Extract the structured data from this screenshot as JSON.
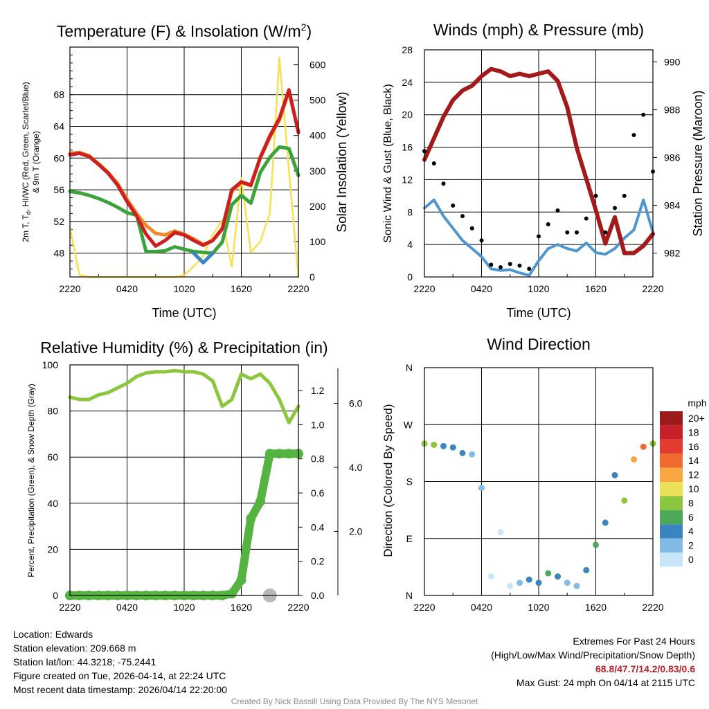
{
  "panels": {
    "temperature": {
      "title": "Temperature (F) & Insolation (W/m",
      "title_sup": "2",
      "title_close": ")",
      "xlabel": "Time (UTC)",
      "ylabel_left_line1": "2m T, T",
      "ylabel_left_sub": "d",
      "ylabel_left_rest": ", HI/WC (Red, Green, Scarlet/Blue)",
      "ylabel_left_line2": "& 9m T (Orange)",
      "ylabel_right": "Solar Insolation (Yellow)"
    },
    "winds": {
      "title": "Winds (mph) & Pressure (mb)",
      "xlabel": "Time (UTC)",
      "ylabel_left": "Sonic Wind & Gust (Blue, Black)",
      "ylabel_right": "Station Pressure (Maroon)"
    },
    "humidity": {
      "title": "Relative Humidity (%) & Precipitation (in)",
      "ylabel_left": "Percent, Precipitation (Green), & Snow Depth (Gray)"
    },
    "direction": {
      "title": "Wind Direction",
      "ylabel_left": "Direction (Colored By Speed)",
      "legend_title": "mph"
    }
  },
  "footer": {
    "location": "Location: Edwards",
    "elevation": "Station elevation: 209.668 m",
    "latlon": "Station lat/lon: 44.3218; -75.2441",
    "created": "Figure created on Tue, 2026-04-14, at 22:24 UTC",
    "recent": "Most recent data timestamp: 2026/04/14 22:20:00",
    "extremes_title": "Extremes For Past 24 Hours",
    "extremes_legend": "(High/Low/Max Wind/Precipitation/Snow Depth)",
    "extremes_values": "68.8/47.7/14.2/0.83/0.6",
    "max_gust": "Max Gust: 24 mph On 04/14 at 2115 UTC",
    "credit": "Created By Nick Bassill Using Data Provided By The NYS Mesonet"
  },
  "colors": {
    "temp": "#cc1f1f",
    "temp9m": "#f08a28",
    "dewpoint": "#3aa43a",
    "heat_index": "#d62020",
    "wind_chill": "#3a84c8",
    "solar": "#f7e14f",
    "wind": "#4f96d0",
    "gust": "#000000",
    "pressure": "#a41919",
    "rh": "#8cc63c",
    "precip": "#55b340",
    "snow": "#b8b8b8"
  },
  "chart_data": [
    {
      "type": "line",
      "title": "Temperature (F) & Insolation (W/m2)",
      "xlabel": "Time (UTC)",
      "x_ticks": [
        "2220",
        "0420",
        "1020",
        "1620",
        "2220"
      ],
      "ylim": [
        45,
        74
      ],
      "y_ticks": [
        48,
        52,
        56,
        60,
        64,
        68
      ],
      "y2lim": [
        0,
        650
      ],
      "y2_ticks": [
        0,
        100,
        200,
        300,
        400,
        500,
        600
      ],
      "x": [
        0,
        1,
        2,
        3,
        4,
        5,
        6,
        7,
        8,
        9,
        10,
        11,
        12,
        13,
        14,
        15,
        16,
        17,
        18,
        19,
        20,
        21,
        22,
        23,
        24
      ],
      "series": [
        {
          "name": "2m T",
          "axis": "left",
          "values": [
            60.4,
            60.6,
            60.2,
            59.2,
            58.1,
            56.6,
            54.5,
            52.7,
            50.4,
            48.9,
            49.6,
            50.6,
            50.3,
            49.6,
            49.0,
            49.6,
            51.1,
            56.0,
            57.0,
            56.6,
            60.1,
            62.8,
            65.0,
            68.6,
            63.2
          ]
        },
        {
          "name": "9m T",
          "axis": "left",
          "values": [
            60.6,
            60.7,
            60.3,
            59.3,
            58.2,
            56.8,
            54.8,
            53.0,
            51.5,
            50.5,
            50.3,
            50.8,
            50.4,
            49.8,
            49.1,
            49.6,
            51.0,
            55.8,
            56.9,
            56.5,
            60.0,
            62.6,
            64.8,
            68.4,
            63.3
          ]
        },
        {
          "name": "Dewpoint",
          "axis": "left",
          "values": [
            55.8,
            55.6,
            55.3,
            54.9,
            54.4,
            53.8,
            53.1,
            52.8,
            48.2,
            48.2,
            48.3,
            48.8,
            48.5,
            48.2,
            48.1,
            48.0,
            49.4,
            54.1,
            55.3,
            54.3,
            58.2,
            60.1,
            61.4,
            61.2,
            57.8
          ]
        },
        {
          "name": "Wind Chill",
          "axis": "left",
          "values": [
            null,
            null,
            null,
            null,
            null,
            null,
            null,
            null,
            null,
            null,
            null,
            null,
            null,
            48.0,
            46.8,
            48.0,
            null,
            null,
            null,
            null,
            null,
            null,
            null,
            null,
            null
          ]
        },
        {
          "name": "Solar Insolation",
          "axis": "right",
          "values": [
            140,
            5,
            0,
            0,
            0,
            0,
            0,
            0,
            0,
            0,
            0,
            0,
            5,
            30,
            60,
            120,
            160,
            30,
            280,
            70,
            100,
            180,
            620,
            300,
            0
          ]
        }
      ]
    },
    {
      "type": "line",
      "title": "Winds (mph) & Pressure (mb)",
      "xlabel": "Time (UTC)",
      "x_ticks": [
        "2220",
        "0420",
        "1020",
        "1620",
        "2220"
      ],
      "ylim": [
        0,
        28
      ],
      "y_ticks": [
        0,
        4,
        8,
        12,
        16,
        20,
        24,
        28
      ],
      "y2lim": [
        981,
        990.5
      ],
      "y2_ticks": [
        982,
        984,
        986,
        988,
        990
      ],
      "x": [
        0,
        1,
        2,
        3,
        4,
        5,
        6,
        7,
        8,
        9,
        10,
        11,
        12,
        13,
        14,
        15,
        16,
        17,
        18,
        19,
        20,
        21,
        22,
        23,
        24
      ],
      "series": [
        {
          "name": "Sonic Wind",
          "axis": "left",
          "values": [
            8.5,
            9.5,
            7.5,
            6.0,
            4.5,
            3.5,
            2.5,
            1.0,
            0.8,
            0.9,
            0.5,
            0.2,
            2.0,
            3.5,
            4.0,
            3.5,
            3.2,
            4.2,
            3.0,
            2.8,
            3.5,
            4.8,
            5.8,
            9.5,
            5.5
          ]
        },
        {
          "name": "Gust",
          "axis": "left",
          "values": [
            15.5,
            14.0,
            11.5,
            8.8,
            7.5,
            6.0,
            4.5,
            1.5,
            1.2,
            1.6,
            1.4,
            1.0,
            5.0,
            6.5,
            8.2,
            5.5,
            5.5,
            7.2,
            10.0,
            5.5,
            8.5,
            10.0,
            17.5,
            20.0,
            13.0
          ]
        },
        {
          "name": "Station Pressure",
          "axis": "right",
          "values": [
            985.9,
            986.8,
            987.7,
            988.4,
            988.8,
            989.0,
            989.4,
            989.7,
            989.6,
            989.4,
            989.5,
            989.4,
            989.5,
            989.6,
            989.2,
            988.1,
            986.4,
            985.1,
            983.8,
            982.4,
            983.5,
            982.0,
            982.0,
            982.3,
            982.8
          ]
        }
      ]
    },
    {
      "type": "line",
      "title": "Relative Humidity (%) & Precipitation (in)",
      "x_ticks": [
        "2220",
        "0420",
        "1020",
        "1620",
        "2220"
      ],
      "ylim": [
        0,
        100
      ],
      "y_ticks": [
        0,
        20,
        40,
        60,
        80,
        100
      ],
      "precip_ticks": [
        0.0,
        0.2,
        0.4,
        0.6,
        0.8,
        1.0,
        1.2
      ],
      "snow_ticks": [
        "2.0",
        "4.0",
        "6.0"
      ],
      "x": [
        0,
        1,
        2,
        3,
        4,
        5,
        6,
        7,
        8,
        9,
        10,
        11,
        12,
        13,
        14,
        15,
        16,
        17,
        18,
        19,
        20,
        21,
        22,
        23,
        24
      ],
      "series": [
        {
          "name": "Relative Humidity",
          "axis": "left",
          "values": [
            86,
            85,
            85,
            87,
            88,
            90,
            92,
            95,
            96.5,
            97,
            97,
            97.5,
            97,
            97,
            96,
            93,
            82,
            85,
            96,
            94,
            96,
            92,
            85,
            75,
            82
          ]
        },
        {
          "name": "Precipitation",
          "axis": "precip",
          "values": [
            0,
            0,
            0,
            0,
            0,
            0,
            0,
            0,
            0,
            0,
            0,
            0,
            0,
            0,
            0,
            0,
            0,
            0.01,
            0.09,
            0.45,
            0.55,
            0.83,
            0.83,
            0.83,
            0.83
          ]
        },
        {
          "name": "Snow Depth",
          "axis": "snow",
          "values": [
            null,
            null,
            null,
            null,
            null,
            null,
            null,
            null,
            null,
            null,
            null,
            null,
            null,
            null,
            null,
            null,
            null,
            null,
            null,
            null,
            null,
            0.0,
            null,
            null,
            null
          ]
        }
      ]
    },
    {
      "type": "scatter",
      "title": "Wind Direction",
      "ylabel": "Direction (Colored By Speed)",
      "x_ticks": [
        "2220",
        "0420",
        "1020",
        "1620",
        "2220"
      ],
      "y_ticks": [
        "N",
        "E",
        "S",
        "W",
        "N"
      ],
      "ylim": [
        0,
        360
      ],
      "x": [
        0,
        1,
        2,
        3,
        4,
        5,
        6,
        7,
        8,
        9,
        10,
        11,
        12,
        13,
        14,
        15,
        16,
        17,
        18,
        19,
        20,
        21,
        22,
        23,
        24
      ],
      "series": [
        {
          "name": "Direction",
          "values": [
            240,
            238,
            236,
            234,
            225,
            223,
            170,
            30,
            100,
            15,
            20,
            25,
            20,
            35,
            30,
            20,
            15,
            40,
            80,
            115,
            190,
            150,
            215,
            235,
            240
          ]
        },
        {
          "name": "Speed (mph)",
          "values": [
            9,
            8,
            5,
            4,
            4,
            3,
            2,
            1,
            1,
            1,
            2,
            4,
            5,
            6,
            4,
            3,
            3,
            5,
            7,
            4,
            5,
            8,
            12,
            15,
            8
          ]
        }
      ],
      "legend": {
        "title": "mph",
        "labels": [
          "20+",
          "18",
          "16",
          "14",
          "12",
          "10",
          "8",
          "6",
          "4",
          "2",
          "0"
        ],
        "colors": [
          "#9c1a1c",
          "#c8202a",
          "#e23a2c",
          "#f06a30",
          "#f8a642",
          "#ece25a",
          "#8cc63c",
          "#4ea85a",
          "#3a84c0",
          "#80bce6",
          "#c8e6f8"
        ]
      }
    }
  ]
}
